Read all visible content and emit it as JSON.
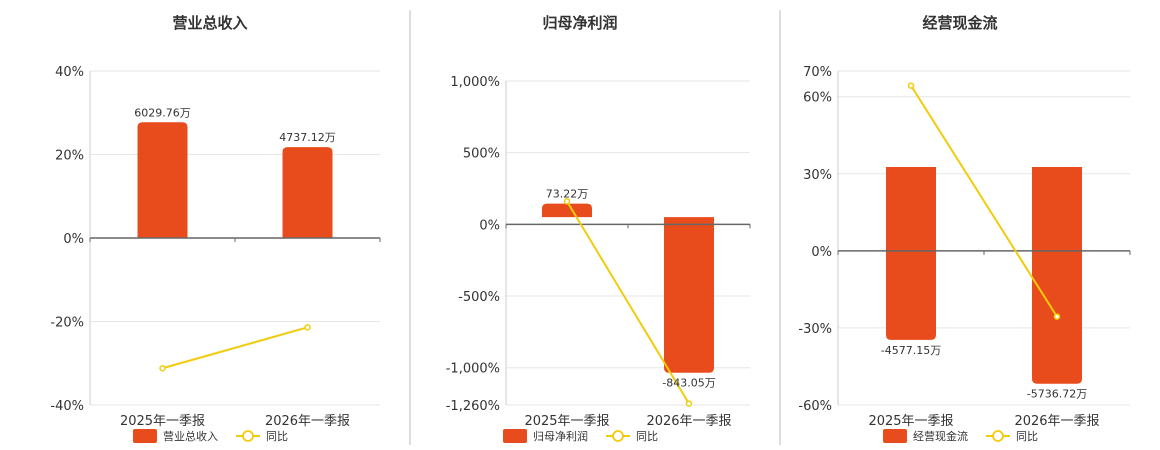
{
  "colors": {
    "bar": "#E84C1C",
    "line": "#F2CC0C",
    "grid": "#E6E6E6",
    "axis": "#666666",
    "divider": "#BBBBBB"
  },
  "legend_line_label": "同比",
  "chart_data": [
    {
      "type": "bar",
      "title": "营业总收入",
      "categories": [
        "2025年一季报",
        "2026年一季报"
      ],
      "bar_series": {
        "name": "营业总收入",
        "values": [
          6029.76,
          4737.12
        ],
        "labels": [
          "6029.76万",
          "4737.12万"
        ]
      },
      "line_series": {
        "name": "同比",
        "values": [
          -31.2,
          -21.4
        ]
      },
      "bar_range": [
        -8700,
        8700
      ],
      "ylim": [
        -40,
        40
      ],
      "yticks": [
        -40,
        -20,
        0,
        20,
        40
      ],
      "ytick_labels": [
        "-40%",
        "-20%",
        "0%",
        "20%",
        "40%"
      ]
    },
    {
      "type": "bar",
      "title": "归母净利润",
      "categories": [
        "2025年一季报",
        "2026年一季报"
      ],
      "bar_series": {
        "name": "归母净利润",
        "values": [
          73.22,
          -843.05
        ],
        "labels": [
          "73.22万",
          "-843.05万"
        ]
      },
      "line_series": {
        "name": "同比",
        "values": [
          160,
          -1250
        ]
      },
      "bar_range": [
        -1018,
        738
      ],
      "ylim": [
        -1260,
        1000
      ],
      "yticks": [
        -1260,
        -1000,
        -500,
        0,
        500,
        1000
      ],
      "ytick_labels": [
        "-1,260%",
        "-1,000%",
        "-500%",
        "0%",
        "500%",
        "1,000%"
      ]
    },
    {
      "type": "bar",
      "title": "经营现金流",
      "categories": [
        "2025年一季报",
        "2026年一季报"
      ],
      "bar_series": {
        "name": "经营现金流",
        "values": [
          -4577.15,
          -5736.72
        ],
        "labels": [
          "-4577.15万",
          "-5736.72万"
        ]
      },
      "line_series": {
        "name": "同比",
        "values": [
          64.3,
          -25.6
        ]
      },
      "bar_range": [
        -6300,
        2540
      ],
      "ylim": [
        -60,
        70
      ],
      "yticks": [
        -60,
        -30,
        0,
        30,
        60,
        70
      ],
      "ytick_labels": [
        "-60%",
        "-30%",
        "0%",
        "30%",
        "60%",
        "70%"
      ]
    }
  ]
}
